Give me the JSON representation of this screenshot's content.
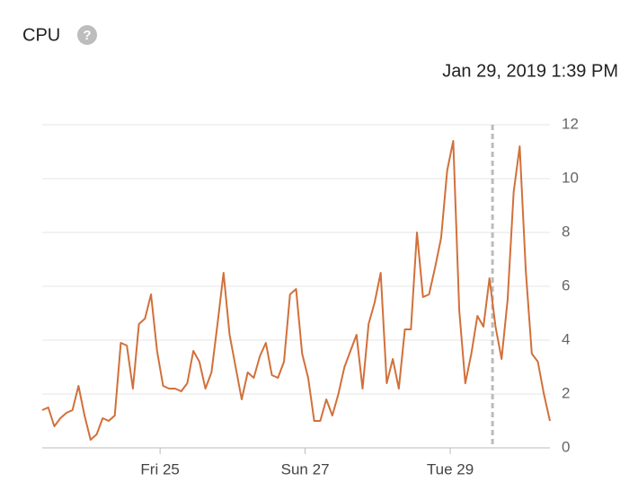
{
  "chart_data": {
    "type": "line",
    "title": "CPU",
    "help_icon": "?",
    "cursor": {
      "x": 74.5,
      "label": "Jan 29, 2019 1:39 PM"
    },
    "x": [
      0,
      1,
      2,
      3,
      4,
      5,
      6,
      7,
      8,
      9,
      10,
      11,
      12,
      13,
      14,
      15,
      16,
      17,
      18,
      19,
      20,
      21,
      22,
      23,
      24,
      25,
      26,
      27,
      28,
      29,
      30,
      31,
      32,
      33,
      34,
      35,
      36,
      37,
      38,
      39,
      40,
      41,
      42,
      43,
      44,
      45,
      46,
      47,
      48,
      49,
      50,
      51,
      52,
      53,
      54,
      55,
      56,
      57,
      58,
      59,
      60,
      61,
      62,
      63,
      64,
      65,
      66,
      67,
      68,
      69,
      70,
      71,
      72,
      73,
      74,
      75,
      76,
      77,
      78,
      79,
      80,
      81,
      82,
      83,
      84
    ],
    "series": [
      {
        "name": "CPU",
        "color": "#d2703a",
        "values": [
          1.4,
          1.5,
          0.8,
          1.1,
          1.3,
          1.4,
          2.3,
          1.2,
          0.3,
          0.5,
          1.1,
          1.0,
          1.2,
          3.9,
          3.8,
          2.2,
          4.6,
          4.8,
          5.7,
          3.6,
          2.3,
          2.2,
          2.2,
          2.1,
          2.4,
          3.6,
          3.2,
          2.2,
          2.8,
          4.6,
          6.5,
          4.2,
          3.0,
          1.8,
          2.8,
          2.6,
          3.4,
          3.9,
          2.7,
          2.6,
          3.2,
          5.7,
          5.9,
          3.5,
          2.6,
          1.0,
          1.0,
          1.8,
          1.2,
          2.0,
          3.0,
          3.6,
          4.2,
          2.2,
          4.6,
          5.4,
          6.5,
          2.4,
          3.3,
          2.2,
          4.4,
          4.4,
          8.0,
          5.6,
          5.7,
          6.7,
          7.8,
          10.3,
          11.4,
          5.1,
          2.4,
          3.5,
          4.9,
          4.5,
          6.3,
          4.5,
          3.3,
          5.5,
          9.5,
          11.2,
          6.6,
          3.5,
          3.2,
          2.0,
          1.0
        ]
      }
    ],
    "xlim": [
      0,
      84
    ],
    "xticks": [
      {
        "value": 19.5,
        "label": "Fri 25"
      },
      {
        "value": 43.5,
        "label": "Sun 27"
      },
      {
        "value": 67.5,
        "label": "Tue 29"
      }
    ],
    "ylim": [
      0,
      12
    ],
    "yticks": [
      0,
      2,
      4,
      6,
      8,
      10,
      12
    ],
    "grid": true
  }
}
